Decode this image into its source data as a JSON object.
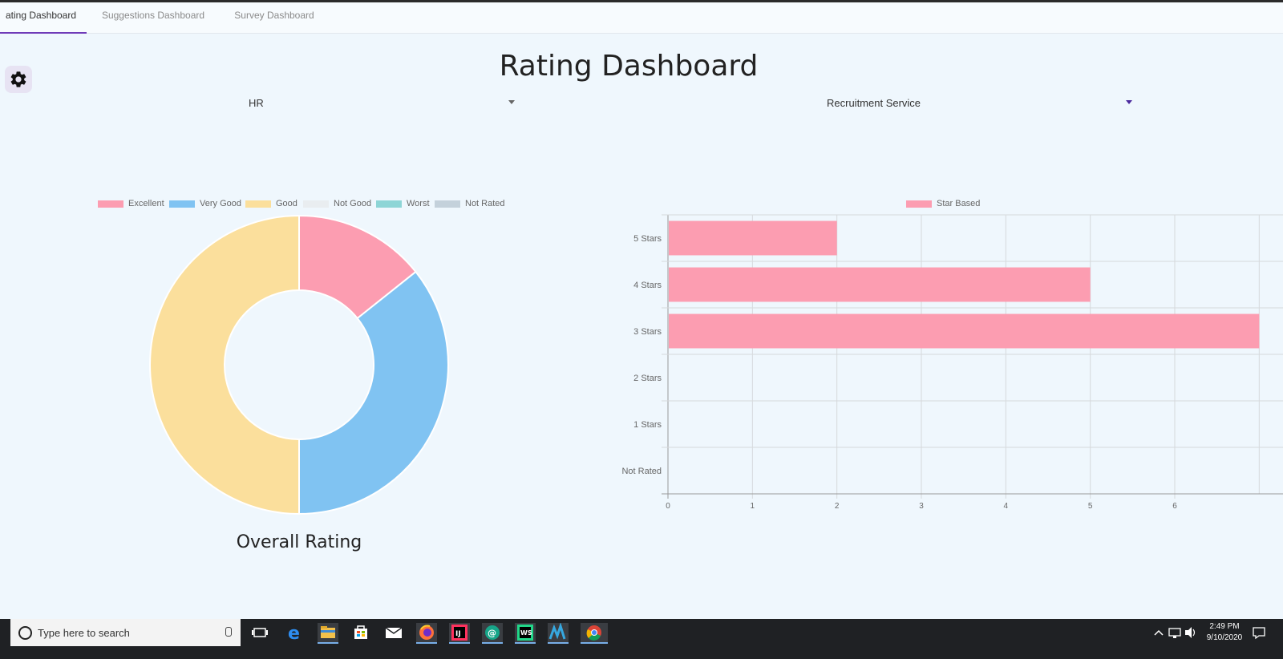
{
  "tabs": [
    {
      "label": "Rating Dashboard",
      "active": true
    },
    {
      "label": "Suggestions Dashboard",
      "active": false
    },
    {
      "label": "Survey Dashboard",
      "active": false
    }
  ],
  "tab_display": {
    "first_visible_label": "ating Dashboard"
  },
  "page_title": "Rating Dashboard",
  "filters": {
    "department": {
      "value": "HR"
    },
    "service": {
      "value": "Recruitment Service"
    }
  },
  "colors": {
    "excellent": "#fc9db1",
    "very_good": "#80c3f2",
    "good": "#fbdf9c",
    "not_good": "#e9edf0",
    "worst": "#8dd5d6",
    "not_rated": "#c4d1db",
    "accent": "#6f3bb8"
  },
  "chart_data": [
    {
      "type": "pie",
      "subtype": "doughnut",
      "title": "Overall Rating",
      "labels": [
        "Excellent",
        "Very Good",
        "Good",
        "Not Good",
        "Worst",
        "Not Rated"
      ],
      "values": [
        2,
        5,
        7,
        0,
        0,
        0
      ],
      "legend_position": "top"
    },
    {
      "type": "bar",
      "orientation": "horizontal",
      "categories": [
        "5 Stars",
        "4 Stars",
        "3 Stars",
        "2 Stars",
        "1 Stars",
        "Not Rated"
      ],
      "series": [
        {
          "name": "Star Based",
          "values": [
            2,
            5,
            7,
            0,
            0,
            0
          ]
        }
      ],
      "x_ticks": [
        "0",
        "1",
        "2",
        "3",
        "4",
        "5",
        "6"
      ],
      "xlim": [
        0,
        7
      ],
      "grid": true,
      "legend_position": "top"
    }
  ],
  "taskbar": {
    "search_placeholder": "Type here to search",
    "apps": [
      "task-view",
      "edge",
      "file-explorer",
      "microsoft-store",
      "mail",
      "firefox",
      "intellij-idea",
      "app-at",
      "webstorm",
      "app-w",
      "chrome"
    ],
    "clock_time": "2:49 PM",
    "clock_date": "9/10/2020"
  }
}
